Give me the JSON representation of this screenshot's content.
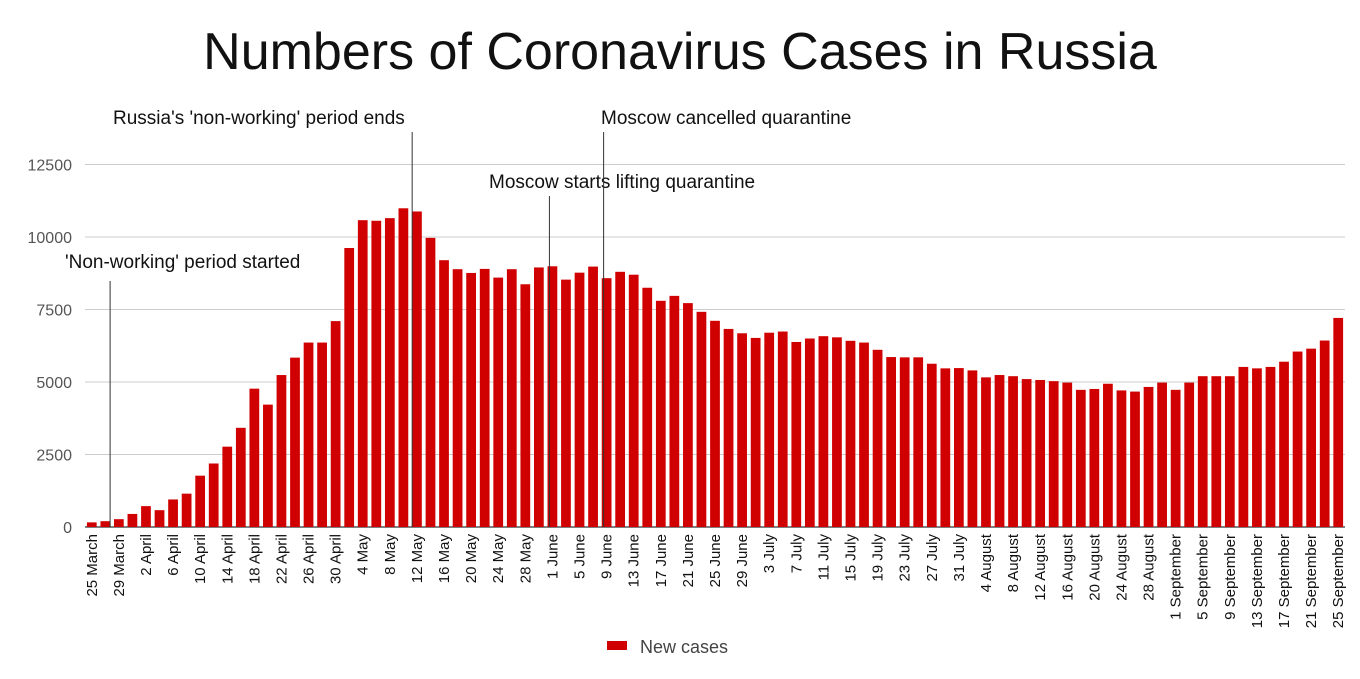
{
  "chart_data": {
    "type": "bar",
    "title": "Numbers of Coronavirus Cases in Russia",
    "xlabel": "",
    "ylabel": "",
    "ylim": [
      0,
      13000
    ],
    "yticks": [
      0,
      2500,
      5000,
      7500,
      10000,
      12500
    ],
    "grid": true,
    "legend_position": "bottom",
    "bar_color": "#d00000",
    "categories": [
      "25 March",
      "27 March",
      "29 March",
      "31 March",
      "2 April",
      "4 April",
      "6 April",
      "8 April",
      "10 April",
      "12 April",
      "14 April",
      "16 April",
      "18 April",
      "20 April",
      "22 April",
      "24 April",
      "26 April",
      "28 April",
      "30 April",
      "2 May",
      "4 May",
      "6 May",
      "8 May",
      "10 May",
      "12 May",
      "14 May",
      "16 May",
      "18 May",
      "20 May",
      "22 May",
      "24 May",
      "26 May",
      "28 May",
      "30 May",
      "1 June",
      "3 June",
      "5 June",
      "7 June",
      "9 June",
      "11 June",
      "13 June",
      "15 June",
      "17 June",
      "19 June",
      "21 June",
      "23 June",
      "25 June",
      "27 June",
      "29 June",
      "1 July",
      "3 July",
      "5 July",
      "7 July",
      "9 July",
      "11 July",
      "13 July",
      "15 July",
      "17 July",
      "19 July",
      "21 July",
      "23 July",
      "25 July",
      "27 July",
      "29 July",
      "31 July",
      "2 August",
      "4 August",
      "6 August",
      "8 August",
      "10 August",
      "12 August",
      "14 August",
      "16 August",
      "18 August",
      "20 August",
      "22 August",
      "24 August",
      "26 August",
      "28 August",
      "30 August",
      "1 September",
      "3 September",
      "5 September",
      "7 September",
      "9 September",
      "11 September",
      "13 September",
      "15 September",
      "17 September",
      "19 September",
      "21 September",
      "23 September",
      "25 September"
    ],
    "tick_labels": [
      "25 March",
      "29 March",
      "2 April",
      "6 April",
      "10 April",
      "14 April",
      "18 April",
      "22 April",
      "26 April",
      "30 April",
      "4 May",
      "8 May",
      "12 May",
      "16 May",
      "20 May",
      "24 May",
      "28 May",
      "1 June",
      "5 June",
      "9 June",
      "13 June",
      "17 June",
      "21 June",
      "25 June",
      "29 June",
      "3 July",
      "7 July",
      "11 July",
      "15 July",
      "19 July",
      "23 July",
      "27 July",
      "31 July",
      "4 August",
      "8 August",
      "12 August",
      "16 August",
      "20 August",
      "24 August",
      "28 August",
      "1 September",
      "5 September",
      "9 September",
      "13 September",
      "17 September",
      "21 September",
      "25 September"
    ],
    "series": [
      {
        "name": "New cases",
        "color": "#d00000",
        "values": [
          160,
          200,
          270,
          450,
          720,
          580,
          950,
          1150,
          1770,
          2190,
          2770,
          3420,
          4770,
          4220,
          5240,
          5840,
          6360,
          6360,
          7100,
          9620,
          10580,
          10560,
          10650,
          10990,
          10880,
          9970,
          9200,
          8890,
          8760,
          8900,
          8600,
          8890,
          8370,
          8950,
          8990,
          8530,
          8770,
          8980,
          8580,
          8800,
          8700,
          8250,
          7800,
          7970,
          7720,
          7420,
          7110,
          6830,
          6680,
          6520,
          6700,
          6740,
          6380,
          6500,
          6580,
          6540,
          6420,
          6360,
          6110,
          5860,
          5850,
          5850,
          5630,
          5470,
          5480,
          5400,
          5160,
          5240,
          5200,
          5100,
          5070,
          5030,
          4980,
          4730,
          4760,
          4940,
          4710,
          4670,
          4830,
          4980,
          4730,
          4980,
          5200,
          5200,
          5200,
          5520,
          5470,
          5520,
          5700,
          6050,
          6150,
          6430,
          7210
        ]
      }
    ],
    "annotations": [
      {
        "text": "'Non-working' period started",
        "x": "28 March"
      },
      {
        "text": "Russia's 'non-working' period ends",
        "x": "11 May"
      },
      {
        "text": "Moscow starts lifting quarantine",
        "x": "1 June"
      },
      {
        "text": "Moscow cancelled quarantine",
        "x": "9 June"
      }
    ]
  }
}
